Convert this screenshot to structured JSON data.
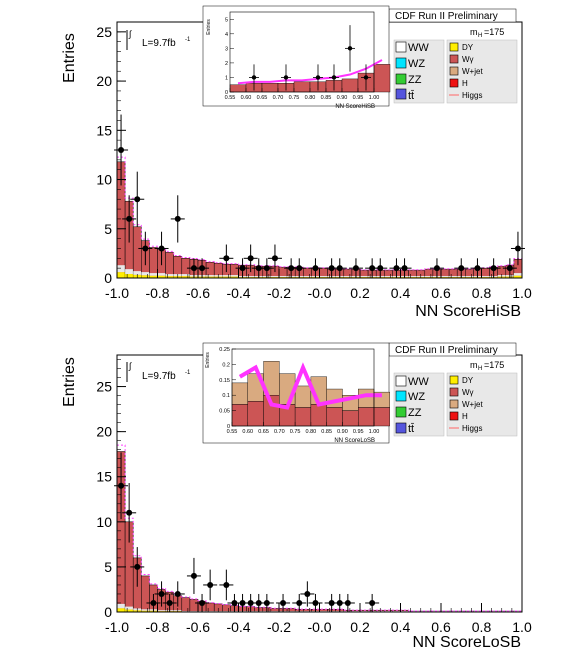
{
  "chart_data": [
    {
      "type": "bar",
      "title": "CDF Run II Preliminary",
      "xlabel": "NN ScoreHiSB",
      "ylabel": "Entries",
      "xlim": [
        -1.0,
        1.0
      ],
      "ylim": [
        0,
        26
      ],
      "xticks": [
        "-1.0",
        "-0.8",
        "-0.6",
        "-0.4",
        "-0.2",
        "-0.0",
        "0.2",
        "0.4",
        "0.6",
        "0.8",
        "1.0"
      ],
      "yticks": [
        "0",
        "5",
        "10",
        "15",
        "20",
        "25"
      ],
      "lumi_label": "L=9.7fb",
      "lumi_sup": "-1",
      "mass_label": "m",
      "mass_sub": "H",
      "mass_value": "=175",
      "legend_left": [
        "WW",
        "WZ",
        "ZZ",
        "tt̄"
      ],
      "legend_right": [
        "DY",
        "Wγ",
        "W+jet",
        "H",
        "Higgs"
      ],
      "bin_edges_start": -1.0,
      "bin_width": 0.04,
      "stack_total": [
        11.8,
        7.8,
        5.2,
        3.8,
        3.1,
        2.9,
        2.6,
        2.2,
        2.0,
        1.9,
        1.8,
        1.6,
        1.5,
        1.4,
        1.4,
        1.3,
        1.3,
        1.2,
        1.2,
        1.2,
        1.1,
        1.1,
        1.1,
        1.0,
        1.0,
        1.0,
        0.9,
        0.9,
        0.9,
        0.9,
        0.8,
        0.8,
        0.8,
        0.8,
        0.8,
        0.8,
        0.8,
        0.8,
        0.9,
        0.9,
        0.9,
        0.9,
        0.9,
        0.9,
        1.0,
        1.0,
        1.1,
        1.2,
        1.3,
        1.9
      ],
      "bkg_lower": [
        1.3,
        0.9,
        0.7,
        0.6,
        0.5,
        0.5,
        0.4,
        0.4,
        0.4,
        0.3,
        0.3,
        0.3,
        0.3,
        0.3,
        0.3,
        0.2,
        0.2,
        0.2,
        0.2,
        0.2,
        0.2,
        0.2,
        0.2,
        0.2,
        0.2,
        0.2,
        0.2,
        0.2,
        0.2,
        0.2,
        0.2,
        0.2,
        0.2,
        0.2,
        0.2,
        0.2,
        0.2,
        0.2,
        0.2,
        0.2,
        0.2,
        0.2,
        0.2,
        0.2,
        0.2,
        0.2,
        0.2,
        0.3,
        0.3,
        0.5
      ],
      "data_points": [
        {
          "x": -0.98,
          "y": 13,
          "err": 3.6
        },
        {
          "x": -0.94,
          "y": 6,
          "err": 2.4
        },
        {
          "x": -0.9,
          "y": 8,
          "err": 2.8
        },
        {
          "x": -0.86,
          "y": 3,
          "err": 1.7
        },
        {
          "x": -0.78,
          "y": 3,
          "err": 1.7
        },
        {
          "x": -0.7,
          "y": 6,
          "err": 2.4
        },
        {
          "x": -0.62,
          "y": 1,
          "err": 1.0
        },
        {
          "x": -0.58,
          "y": 1,
          "err": 1.0
        },
        {
          "x": -0.46,
          "y": 2,
          "err": 1.4
        },
        {
          "x": -0.38,
          "y": 1,
          "err": 1.0
        },
        {
          "x": -0.34,
          "y": 2,
          "err": 1.4
        },
        {
          "x": -0.3,
          "y": 1,
          "err": 1.0
        },
        {
          "x": -0.26,
          "y": 1,
          "err": 1.0
        },
        {
          "x": -0.22,
          "y": 2,
          "err": 1.4
        },
        {
          "x": -0.14,
          "y": 1,
          "err": 1.0
        },
        {
          "x": -0.1,
          "y": 1,
          "err": 1.0
        },
        {
          "x": -0.02,
          "y": 1,
          "err": 1.0
        },
        {
          "x": 0.06,
          "y": 1,
          "err": 1.0
        },
        {
          "x": 0.1,
          "y": 1,
          "err": 1.0
        },
        {
          "x": 0.18,
          "y": 1,
          "err": 1.0
        },
        {
          "x": 0.26,
          "y": 1,
          "err": 1.0
        },
        {
          "x": 0.3,
          "y": 1,
          "err": 1.0
        },
        {
          "x": 0.38,
          "y": 1,
          "err": 1.0
        },
        {
          "x": 0.42,
          "y": 1,
          "err": 1.0
        },
        {
          "x": 0.58,
          "y": 1,
          "err": 1.0
        },
        {
          "x": 0.7,
          "y": 1,
          "err": 1.0
        },
        {
          "x": 0.78,
          "y": 1,
          "err": 1.0
        },
        {
          "x": 0.86,
          "y": 1,
          "err": 1.0
        },
        {
          "x": 0.94,
          "y": 1,
          "err": 1.0
        },
        {
          "x": 0.98,
          "y": 3,
          "err": 1.7
        }
      ],
      "inset": {
        "xlabel": "NN ScoreHiSB",
        "ylabel": "Entries",
        "xlim": [
          0.55,
          1.0
        ],
        "ylim": [
          0,
          5.5
        ],
        "xticks": [
          "0.55",
          "0.60",
          "0.65",
          "0.70",
          "0.75",
          "0.80",
          "0.85",
          "0.90",
          "0.95",
          "1.00"
        ],
        "yticks": [
          "0",
          "1",
          "2",
          "3",
          "4",
          "5"
        ],
        "stack_total": [
          0.5,
          0.6,
          0.6,
          0.6,
          0.7,
          0.7,
          0.8,
          0.9,
          1.3,
          1.9
        ],
        "signal": [
          0.6,
          0.7,
          0.7,
          0.8,
          0.8,
          0.9,
          1.0,
          1.2,
          1.6,
          2.2
        ],
        "data_points": [
          {
            "x": 0.625,
            "y": 1,
            "err": 0.9
          },
          {
            "x": 0.725,
            "y": 1,
            "err": 0.9
          },
          {
            "x": 0.825,
            "y": 1,
            "err": 0.9
          },
          {
            "x": 0.875,
            "y": 1,
            "err": 0.9
          },
          {
            "x": 0.925,
            "y": 3,
            "err": 1.6
          },
          {
            "x": 0.975,
            "y": 1,
            "err": 0.9
          }
        ]
      }
    },
    {
      "type": "bar",
      "title": "CDF Run II Preliminary",
      "xlabel": "NN ScoreLoSB",
      "ylabel": "Entries",
      "xlim": [
        -1.0,
        1.0
      ],
      "ylim": [
        0,
        28.5
      ],
      "xticks": [
        "-1.0",
        "-0.8",
        "-0.6",
        "-0.4",
        "-0.2",
        "-0.0",
        "0.2",
        "0.4",
        "0.6",
        "0.8",
        "1.0"
      ],
      "yticks": [
        "0",
        "5",
        "10",
        "15",
        "20",
        "25"
      ],
      "lumi_label": "L=9.7fb",
      "lumi_sup": "-1",
      "mass_label": "m",
      "mass_sub": "H",
      "mass_value": "=175",
      "legend_left": [
        "WW",
        "WZ",
        "ZZ",
        "tt̄"
      ],
      "legend_right": [
        "DY",
        "Wγ",
        "W+jet",
        "H",
        "Higgs"
      ],
      "bin_edges_start": -1.0,
      "bin_width": 0.04,
      "stack_total": [
        17.8,
        10.0,
        6.0,
        4.0,
        3.0,
        2.5,
        2.2,
        1.8,
        1.6,
        1.4,
        1.2,
        1.0,
        0.9,
        0.8,
        0.7,
        0.6,
        0.6,
        0.5,
        0.5,
        0.4,
        0.4,
        0.4,
        0.3,
        0.3,
        0.3,
        0.3,
        0.3,
        0.3,
        0.2,
        0.2,
        0.2,
        0.2,
        0.2,
        0.2,
        0.2,
        0.2,
        0.1,
        0.1,
        0.1,
        0.1,
        0.1,
        0.1,
        0.1,
        0.1,
        0.1,
        0.1,
        0.1,
        0.1,
        0.1,
        0.1
      ],
      "bkg_lower": [
        0.9,
        0.6,
        0.4,
        0.3,
        0.3,
        0.2,
        0.2,
        0.2,
        0.1,
        0.1,
        0.1,
        0.1,
        0.1,
        0.1,
        0.1,
        0.1,
        0.1,
        0.1,
        0.1,
        0.1,
        0.1,
        0.1,
        0.1,
        0.1,
        0.1,
        0.1,
        0.1,
        0.1,
        0.1,
        0.1,
        0.1,
        0.1,
        0.1,
        0.1,
        0.1,
        0.1,
        0.1,
        0.1,
        0.1,
        0.1,
        0.1,
        0.1,
        0.1,
        0.1,
        0.1,
        0.1,
        0.1,
        0.1,
        0.1,
        0.1
      ],
      "data_points": [
        {
          "x": -0.98,
          "y": 14,
          "err": 3.7
        },
        {
          "x": -0.94,
          "y": 11,
          "err": 3.3
        },
        {
          "x": -0.9,
          "y": 5,
          "err": 2.2
        },
        {
          "x": -0.82,
          "y": 1,
          "err": 1.0
        },
        {
          "x": -0.78,
          "y": 2,
          "err": 1.4
        },
        {
          "x": -0.74,
          "y": 1,
          "err": 1.0
        },
        {
          "x": -0.7,
          "y": 2,
          "err": 1.4
        },
        {
          "x": -0.62,
          "y": 4,
          "err": 2.0
        },
        {
          "x": -0.58,
          "y": 1,
          "err": 1.0
        },
        {
          "x": -0.54,
          "y": 3,
          "err": 1.7
        },
        {
          "x": -0.46,
          "y": 3,
          "err": 1.7
        },
        {
          "x": -0.42,
          "y": 1,
          "err": 1.0
        },
        {
          "x": -0.38,
          "y": 1,
          "err": 1.0
        },
        {
          "x": -0.34,
          "y": 1,
          "err": 1.0
        },
        {
          "x": -0.3,
          "y": 1,
          "err": 1.0
        },
        {
          "x": -0.26,
          "y": 1,
          "err": 1.0
        },
        {
          "x": -0.18,
          "y": 1,
          "err": 1.0
        },
        {
          "x": -0.1,
          "y": 1,
          "err": 1.0
        },
        {
          "x": -0.06,
          "y": 2,
          "err": 1.4
        },
        {
          "x": -0.02,
          "y": 1,
          "err": 1.0
        },
        {
          "x": 0.06,
          "y": 1,
          "err": 1.0
        },
        {
          "x": 0.1,
          "y": 1,
          "err": 1.0
        },
        {
          "x": 0.14,
          "y": 1,
          "err": 1.0
        },
        {
          "x": 0.26,
          "y": 1,
          "err": 1.0
        }
      ],
      "inset": {
        "xlabel": "NN ScoreLoSB",
        "ylabel": "Entries",
        "xlim": [
          0.55,
          1.0
        ],
        "ylim": [
          0,
          0.25
        ],
        "xticks": [
          "0.55",
          "0.60",
          "0.65",
          "0.70",
          "0.75",
          "0.80",
          "0.85",
          "0.90",
          "0.95",
          "1.00"
        ],
        "yticks": [
          "0",
          "0.05",
          "0.1",
          "0.15",
          "0.2",
          "0.25"
        ],
        "stack_total": [
          0.14,
          0.17,
          0.21,
          0.17,
          0.13,
          0.16,
          0.12,
          0.1,
          0.12,
          0.11
        ],
        "stack_lower": [
          0.07,
          0.08,
          0.1,
          0.07,
          0.06,
          0.07,
          0.06,
          0.05,
          0.06,
          0.06
        ],
        "signal": [
          0.16,
          0.19,
          0.07,
          0.06,
          0.19,
          0.07,
          0.08,
          0.09,
          0.1,
          0.1
        ]
      }
    }
  ]
}
